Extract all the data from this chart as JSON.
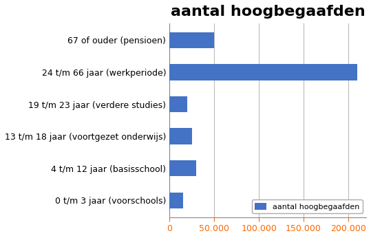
{
  "title": "aantal hoogbegaafden",
  "categories": [
    "0 t/m 3 jaar (voorschools)",
    "4 t/m 12 jaar (basisschool)",
    "13 t/m 18 jaar (voortgezet onderwijs)",
    "19 t/m 23 jaar (verdere studies)",
    "24 t/m 66 jaar (werkperiode)",
    "67 of ouder (pensioen)"
  ],
  "values": [
    15000,
    30000,
    25000,
    20000,
    210000,
    50000
  ],
  "bar_color": "#4472C4",
  "legend_label": "aantal hoogbegaafden",
  "xlim": [
    0,
    220000
  ],
  "xticks": [
    0,
    50000,
    100000,
    150000,
    200000
  ],
  "xtick_labels": [
    "0",
    "50.000",
    "100.000",
    "150.000",
    "200.000"
  ],
  "title_fontsize": 16,
  "ytick_label_fontsize": 9,
  "xtick_label_fontsize": 9,
  "ytick_label_color": "#000000",
  "xtick_label_color": "#FF6600",
  "bg_color": "#FFFFFF",
  "plot_bg_color": "#FFFFFF",
  "grid_color": "#BBBBBB",
  "spine_color": "#888888"
}
